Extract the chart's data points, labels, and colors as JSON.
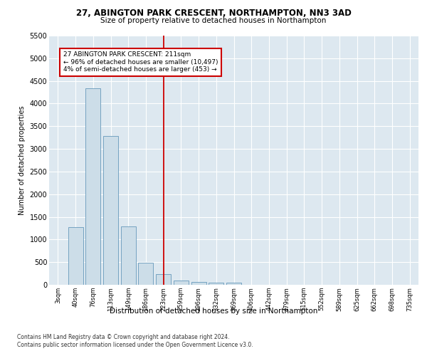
{
  "title1": "27, ABINGTON PARK CRESCENT, NORTHAMPTON, NN3 3AD",
  "title2": "Size of property relative to detached houses in Northampton",
  "xlabel": "Distribution of detached houses by size in Northampton",
  "ylabel": "Number of detached properties",
  "footer1": "Contains HM Land Registry data © Crown copyright and database right 2024.",
  "footer2": "Contains public sector information licensed under the Open Government Licence v3.0.",
  "bin_labels": [
    "3sqm",
    "40sqm",
    "76sqm",
    "113sqm",
    "149sqm",
    "186sqm",
    "223sqm",
    "259sqm",
    "296sqm",
    "332sqm",
    "369sqm",
    "406sqm",
    "442sqm",
    "479sqm",
    "515sqm",
    "552sqm",
    "589sqm",
    "625sqm",
    "662sqm",
    "698sqm",
    "735sqm"
  ],
  "bar_values": [
    0,
    1270,
    4330,
    3290,
    1290,
    490,
    230,
    100,
    65,
    55,
    55,
    0,
    0,
    0,
    0,
    0,
    0,
    0,
    0,
    0,
    0
  ],
  "bar_color": "#ccdde8",
  "bar_edge_color": "#6699bb",
  "vline_x_index": 6,
  "vline_color": "#cc0000",
  "annotation_text": "27 ABINGTON PARK CRESCENT: 211sqm\n← 96% of detached houses are smaller (10,497)\n4% of semi-detached houses are larger (453) →",
  "annotation_box_color": "#cc0000",
  "ylim": [
    0,
    5500
  ],
  "yticks": [
    0,
    500,
    1000,
    1500,
    2000,
    2500,
    3000,
    3500,
    4000,
    4500,
    5000,
    5500
  ],
  "bg_color": "#ffffff",
  "plot_bg_color": "#dde8f0"
}
